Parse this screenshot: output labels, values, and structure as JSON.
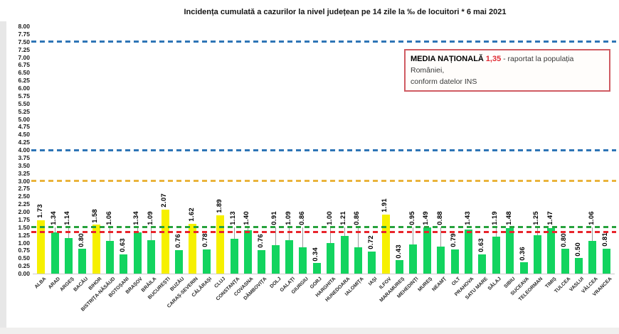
{
  "title": "Incidența cumulată a cazurilor la nivel județean pe 14 zile la ‰ de locuitori *   6 mai 2021",
  "national_average_box": {
    "label": "MEDIA NAȚIONALĂ",
    "value": "1,35",
    "description": "- raportat la populația României,",
    "description_line2": "conform datelor INS",
    "border_color": "#cf5b62",
    "value_color": "#e02a33"
  },
  "chart_data": {
    "type": "bar",
    "title": "Incidența cumulată a cazurilor la nivel județean pe 14 zile la ‰ de locuitori * 6 mai 2021",
    "xlabel": "",
    "ylabel": "",
    "ylim": [
      0,
      8
    ],
    "ytick_step": 0.25,
    "grid": false,
    "threshold": 1.5,
    "bar_color_below_threshold": "#12d45f",
    "bar_color_above_threshold": "#f6f000",
    "categories": [
      "ALBA",
      "ARAD",
      "ARGEȘ",
      "BACĂU",
      "BIHOR",
      "BISTRIȚA-NĂSĂUD",
      "BOTOȘANI",
      "BRAȘOV",
      "BRĂILA",
      "BUCUREȘTI",
      "BUZĂU",
      "CARAȘ-SEVERIN",
      "CĂLĂRAȘI",
      "CLUJ",
      "CONSTANȚA",
      "COVASNA",
      "DÂMBOVIȚA",
      "DOLJ",
      "GALAȚI",
      "GIURGIU",
      "GORJ",
      "HARGHITA",
      "HUNEDOARA",
      "IALOMIȚA",
      "IAȘI",
      "ILFOV",
      "MARAMUREȘ",
      "MEHEDINȚI",
      "MUREȘ",
      "NEAMȚ",
      "OLT",
      "PRAHOVA",
      "SATU MARE",
      "SĂLAJ",
      "SIBIU",
      "SUCEAVA",
      "TELEORMAN",
      "TIMIȘ",
      "TULCEA",
      "VASLUI",
      "VÂLCEA",
      "VRANCEA"
    ],
    "values": [
      1.73,
      1.34,
      1.14,
      0.8,
      1.58,
      1.06,
      0.63,
      1.34,
      1.09,
      2.07,
      0.76,
      1.62,
      0.78,
      1.89,
      1.13,
      1.4,
      0.76,
      0.91,
      1.09,
      0.86,
      0.34,
      1.0,
      1.21,
      0.86,
      0.72,
      1.91,
      0.43,
      0.95,
      1.49,
      0.88,
      0.79,
      1.43,
      0.63,
      1.19,
      1.48,
      0.36,
      1.25,
      1.47,
      0.8,
      0.5,
      1.06,
      0.81
    ],
    "reference_lines": [
      {
        "value": 7.5,
        "color": "#2e75b6",
        "style": "dashed",
        "meaning": "upper-threshold"
      },
      {
        "value": 4.0,
        "color": "#2e75b6",
        "style": "dashed",
        "meaning": "upper-threshold"
      },
      {
        "value": 3.0,
        "color": "#eab43c",
        "style": "dashed",
        "meaning": "scenario-threshold"
      },
      {
        "value": 1.5,
        "color": "#27a23c",
        "style": "dashed",
        "meaning": "yellow-zone-threshold"
      },
      {
        "value": 1.35,
        "color": "#e8252c",
        "style": "dashed",
        "meaning": "national-average"
      }
    ],
    "legend_position": "top-right"
  }
}
